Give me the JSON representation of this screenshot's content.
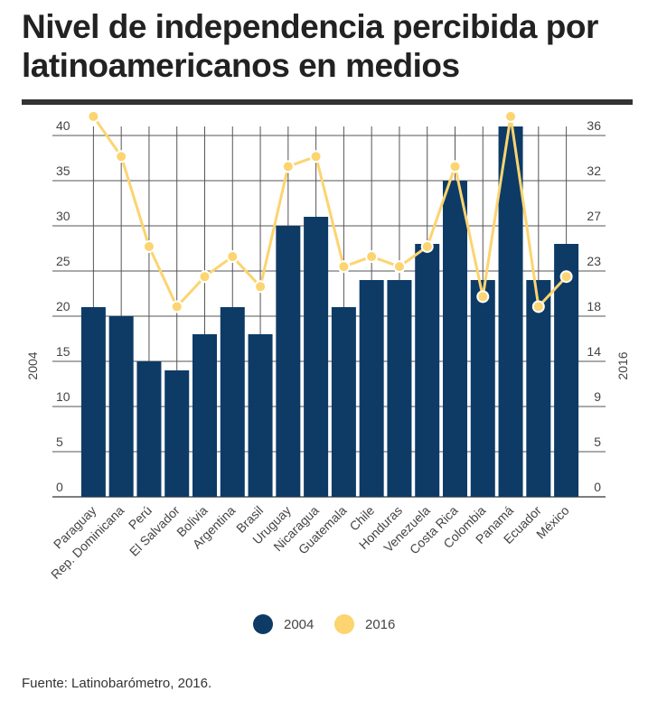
{
  "title": "Nivel de independencia percibida por latinoamericanos en medios",
  "source": "Fuente: Latinobarómetro, 2016.",
  "colors": {
    "bar": "#0d3b66",
    "line": "#fcd470",
    "point_stroke": "#ffffff",
    "grid": "#555555"
  },
  "legend": [
    {
      "label": "2004",
      "color": "#0d3b66"
    },
    {
      "label": "2016",
      "color": "#fcd470"
    }
  ],
  "chart_data": {
    "type": "bar",
    "categories": [
      "Paraguay",
      "Rep. Dominicana",
      "Perú",
      "El Salvador",
      "Bolivia",
      "Argentina",
      "Brasil",
      "Uruguay",
      "Nicaragua",
      "Guatemala",
      "Chile",
      "Honduras",
      "Venezuela",
      "Costa Rica",
      "Colombia",
      "Panamá",
      "Ecuador",
      "México"
    ],
    "series": [
      {
        "name": "2004",
        "type": "bar",
        "axis": "left",
        "values": [
          21,
          20,
          15,
          14,
          18,
          21,
          18,
          30,
          31,
          21,
          24,
          24,
          28,
          35,
          24,
          42,
          24,
          28
        ]
      },
      {
        "name": "2016",
        "type": "line",
        "axis": "right",
        "values": [
          38,
          34,
          25,
          19,
          22,
          24,
          21,
          33,
          34,
          23,
          24,
          23,
          25,
          33,
          20,
          38,
          19,
          22
        ]
      }
    ],
    "ylabel": "2004",
    "y2label": "2016",
    "yticks": [
      "0",
      "5",
      "10",
      "15",
      "20",
      "25",
      "30",
      "35",
      "40"
    ],
    "ylim": [
      0,
      41
    ],
    "y2ticks": [
      "0",
      "5",
      "9",
      "14",
      "18",
      "23",
      "27",
      "32",
      "36"
    ],
    "y2lim": [
      0,
      37
    ],
    "grid": true,
    "legend_position": "bottom-center"
  }
}
